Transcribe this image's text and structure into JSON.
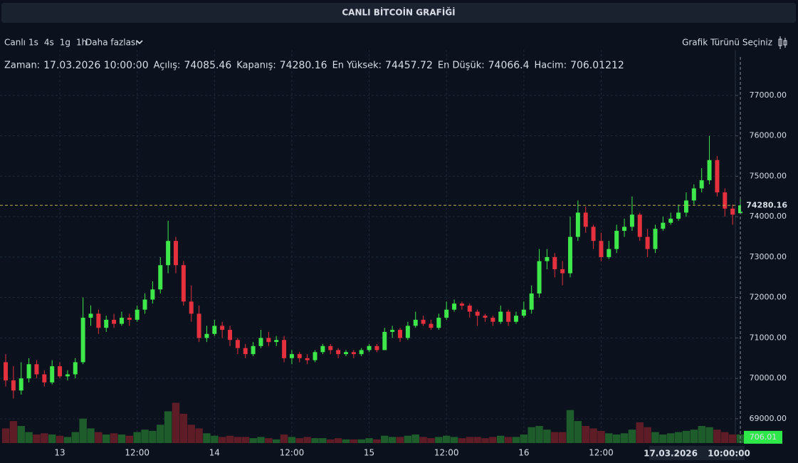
{
  "ui": {
    "title": "CANLI BİTCOİN GRAFİĞİ",
    "live": "Canlı",
    "intervals": [
      "1s",
      "4s",
      "1g",
      "1h"
    ],
    "selected": "1s",
    "more": "Daha fazlası",
    "chart_type": "Grafik Türünü Seçiniz",
    "info_labels": {
      "time": "Zaman:",
      "open": "Açılış:",
      "close": "Kapanış:",
      "high": "En Yüksek:",
      "low": "En Düşük:",
      "volume": "Hacim:"
    }
  },
  "chart_data": {
    "type": "candlestick",
    "up_color": "#3ee84a",
    "down_color": "#e5303d",
    "vol_up_color": "#1f5c2c",
    "vol_down_color": "#5e1c26",
    "grid": true,
    "crosshair_time": "17.03.2026 10:00:00",
    "volume_label": "706.01",
    "ylim": [
      68400,
      77950
    ],
    "yticks": [
      {
        "value": 69000,
        "label": "69000.00"
      },
      {
        "value": 70000,
        "label": "70000.00"
      },
      {
        "value": 71000,
        "label": "71000.00"
      },
      {
        "value": 72000,
        "label": "72000.00"
      },
      {
        "value": 73000,
        "label": "73000.00"
      },
      {
        "value": 74000,
        "label": "74000.00"
      },
      {
        "value": 75000,
        "label": "75000.00"
      },
      {
        "value": 76000,
        "label": "76000.00"
      },
      {
        "value": 77000,
        "label": "77000.00"
      }
    ],
    "y2lim": [
      0,
      3500
    ],
    "categories": [
      null,
      null,
      null,
      null,
      null,
      null,
      null,
      "13",
      null,
      null,
      null,
      null,
      null,
      null,
      null,
      null,
      null,
      "12:00",
      null,
      null,
      null,
      null,
      null,
      null,
      null,
      null,
      null,
      "14",
      null,
      null,
      null,
      null,
      null,
      null,
      null,
      null,
      null,
      "12:00",
      null,
      null,
      null,
      null,
      null,
      null,
      null,
      null,
      null,
      "15",
      null,
      null,
      null,
      null,
      null,
      null,
      null,
      null,
      null,
      "12:00",
      null,
      null,
      null,
      null,
      null,
      null,
      null,
      null,
      null,
      "16",
      null,
      null,
      null,
      null,
      null,
      null,
      null,
      null,
      null,
      "12:00",
      null,
      null,
      null,
      null,
      null,
      null,
      null,
      null,
      null,
      null,
      null,
      null,
      null,
      null,
      null,
      null,
      null,
      null
    ],
    "open": [
      70400,
      69950,
      69700,
      70000,
      70350,
      70100,
      69900,
      70300,
      70050,
      70100,
      70400,
      71500,
      71600,
      71250,
      71450,
      71350,
      71500,
      71450,
      71700,
      71950,
      72200,
      72800,
      73400,
      72800,
      71900,
      71600,
      71000,
      71100,
      71300,
      71200,
      70950,
      70750,
      70600,
      70800,
      71000,
      70900,
      70950,
      70500,
      70600,
      70500,
      70450,
      70650,
      70800,
      70700,
      70600,
      70650,
      70600,
      70700,
      70800,
      70700,
      71150,
      71200,
      71000,
      71300,
      71450,
      71350,
      71250,
      71500,
      71700,
      71850,
      71800,
      71650,
      71550,
      71500,
      71400,
      71650,
      71400,
      71550,
      71700,
      72100,
      72900,
      73000,
      72700,
      72600,
      73500,
      74100,
      73750,
      73400,
      73000,
      73200,
      73650,
      73750,
      74050,
      73500,
      73200,
      73700,
      73850,
      73950,
      74100,
      74400,
      74700,
      74900,
      75400,
      74600,
      74200,
      74085.46
    ],
    "high": [
      70600,
      70300,
      70400,
      70500,
      70450,
      70200,
      70450,
      70400,
      70200,
      70500,
      72000,
      71800,
      71700,
      71550,
      71600,
      71650,
      71600,
      71800,
      72100,
      72400,
      73000,
      73900,
      73500,
      72900,
      72300,
      71800,
      71300,
      71450,
      71400,
      71300,
      71000,
      70850,
      70900,
      71200,
      71150,
      71050,
      71050,
      70700,
      70650,
      70600,
      70700,
      70850,
      70850,
      70750,
      70700,
      70700,
      70750,
      70850,
      70850,
      71250,
      71300,
      71250,
      71400,
      71650,
      71550,
      71450,
      71600,
      71900,
      71950,
      71900,
      71850,
      71700,
      71600,
      71550,
      71800,
      71700,
      71650,
      71900,
      72300,
      73200,
      73200,
      73100,
      72900,
      74000,
      74400,
      74250,
      73800,
      73600,
      73400,
      73800,
      73950,
      74500,
      74100,
      73700,
      73800,
      74000,
      74100,
      74300,
      74600,
      74800,
      75200,
      76000,
      75500,
      74700,
      74300,
      74457.72
    ],
    "low": [
      69800,
      69500,
      69600,
      69900,
      70000,
      69800,
      69850,
      70000,
      69950,
      70000,
      70350,
      71300,
      71100,
      71150,
      71250,
      71300,
      71300,
      71400,
      71600,
      71850,
      72100,
      72600,
      72600,
      71800,
      71400,
      70900,
      70900,
      71050,
      71000,
      70800,
      70600,
      70500,
      70550,
      70750,
      70800,
      70800,
      70400,
      70350,
      70400,
      70350,
      70400,
      70600,
      70600,
      70500,
      70550,
      70500,
      70550,
      70650,
      70650,
      70700,
      71000,
      70900,
      70950,
      71250,
      71300,
      71200,
      71200,
      71450,
      71650,
      71700,
      71500,
      71300,
      71400,
      71300,
      71350,
      71300,
      71350,
      71500,
      71600,
      72000,
      72700,
      72500,
      72300,
      72500,
      73400,
      73600,
      73200,
      72900,
      72950,
      73100,
      73500,
      73650,
      73400,
      73000,
      73100,
      73650,
      73800,
      73900,
      74000,
      74300,
      74600,
      74800,
      74500,
      74000,
      73800,
      74066.4
    ],
    "close": [
      69950,
      69700,
      70000,
      70350,
      70100,
      69900,
      70300,
      70050,
      70100,
      70400,
      71500,
      71600,
      71250,
      71450,
      71350,
      71500,
      71450,
      71700,
      71950,
      72200,
      72800,
      73400,
      72800,
      71900,
      71600,
      71000,
      71100,
      71300,
      71200,
      70950,
      70750,
      70600,
      70800,
      71000,
      70900,
      70950,
      70500,
      70600,
      70500,
      70450,
      70650,
      70800,
      70700,
      70600,
      70650,
      70600,
      70700,
      70800,
      70700,
      71150,
      71200,
      71000,
      71300,
      71450,
      71350,
      71250,
      71500,
      71700,
      71850,
      71800,
      71650,
      71550,
      71500,
      71400,
      71650,
      71400,
      71550,
      71700,
      72100,
      72900,
      73000,
      72700,
      72600,
      73500,
      74100,
      73750,
      73400,
      73000,
      73200,
      73650,
      73750,
      74050,
      73500,
      73200,
      73700,
      73850,
      73950,
      74100,
      74400,
      74700,
      74900,
      75400,
      74600,
      74200,
      74050,
      74280.16
    ],
    "volume": [
      1200,
      1800,
      1400,
      900,
      700,
      800,
      700,
      600,
      500,
      900,
      2000,
      1200,
      900,
      700,
      800,
      700,
      600,
      900,
      1100,
      1000,
      1500,
      2600,
      3300,
      2400,
      1500,
      1200,
      800,
      600,
      500,
      600,
      500,
      500,
      400,
      500,
      400,
      300,
      700,
      500,
      400,
      500,
      400,
      400,
      300,
      400,
      300,
      300,
      300,
      400,
      300,
      600,
      500,
      500,
      600,
      700,
      500,
      400,
      500,
      600,
      500,
      400,
      500,
      500,
      400,
      500,
      600,
      500,
      500,
      700,
      1300,
      1400,
      1100,
      900,
      900,
      2700,
      1800,
      1400,
      1200,
      1000,
      800,
      700,
      800,
      1100,
      1700,
      1300,
      900,
      700,
      800,
      900,
      1000,
      1100,
      1400,
      1300,
      1100,
      900,
      700,
      706.01212
    ]
  }
}
